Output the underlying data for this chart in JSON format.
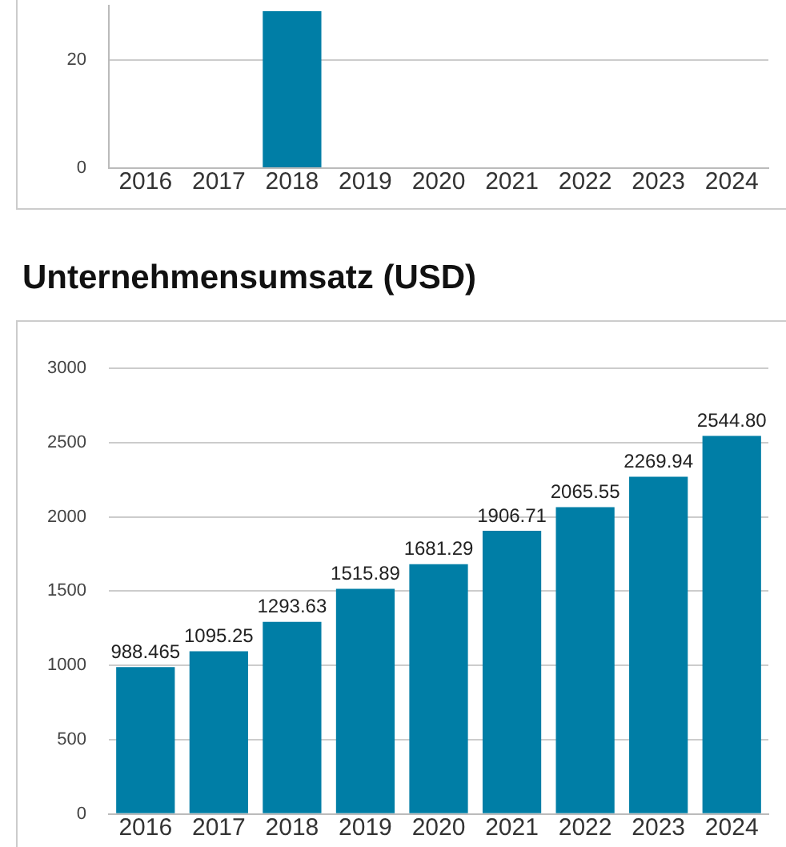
{
  "chart_data": [
    {
      "type": "bar",
      "categories": [
        "2016",
        "2017",
        "2018",
        "2019",
        "2020",
        "2021",
        "2022",
        "2023",
        "2024"
      ],
      "values": [
        null,
        null,
        29,
        null,
        null,
        null,
        null,
        null,
        null
      ],
      "color": "#007ea6",
      "ylim": [
        0,
        30
      ],
      "yticks": [
        0,
        20
      ],
      "grid": "y",
      "legend": false
    },
    {
      "type": "bar",
      "title": "Unternehmensumsatz (USD)",
      "categories": [
        "2016",
        "2017",
        "2018",
        "2019",
        "2020",
        "2021",
        "2022",
        "2023",
        "2024"
      ],
      "values": [
        988.465,
        1095.25,
        1293.63,
        1515.89,
        1681.29,
        1906.71,
        2065.55,
        2269.94,
        2544.8
      ],
      "value_labels": [
        "988.465",
        "1095.25",
        "1293.63",
        "1515.89",
        "1681.29",
        "1906.71",
        "2065.55",
        "2269.94",
        "2544.80"
      ],
      "color": "#007ea6",
      "ylim": [
        0,
        3000
      ],
      "yticks": [
        0,
        500,
        1000,
        1500,
        2000,
        2500,
        3000
      ],
      "grid": "y",
      "legend": false
    }
  ]
}
